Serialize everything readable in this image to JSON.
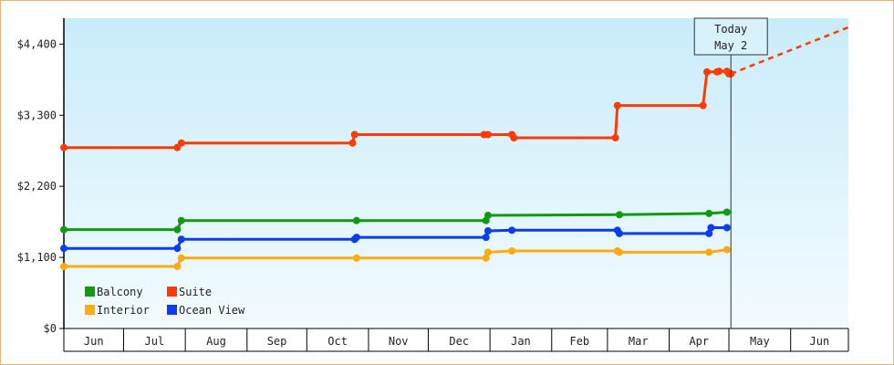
{
  "chart_data": {
    "type": "line",
    "title": "",
    "xlabel": "",
    "ylabel": "",
    "x_axis": {
      "start": "2024-06-01",
      "end": "2025-06-30",
      "tick_labels": [
        "Jun",
        "Jul",
        "Aug",
        "Sep",
        "Oct",
        "Nov",
        "Dec",
        "Jan",
        "Feb",
        "Mar",
        "Apr",
        "May",
        "Jun"
      ]
    },
    "y_axis": {
      "ylim": [
        0,
        4800
      ],
      "ticks": [
        0,
        1100,
        2200,
        3300,
        4400
      ],
      "tick_labels": [
        "$0",
        "$1,100",
        "$2,200",
        "$3,300",
        "$4,400"
      ]
    },
    "grid": false,
    "legend_placement": "bottom-left",
    "today_marker": {
      "line1": "Today",
      "line2": "May 2",
      "date": "2025-05-02"
    },
    "series": [
      {
        "name": "Suite",
        "color": "#ff3b00",
        "points": [
          {
            "date": "2024-06-01",
            "value": 2800
          },
          {
            "date": "2024-07-28",
            "value": 2800
          },
          {
            "date": "2024-07-30",
            "value": 2870
          },
          {
            "date": "2024-10-24",
            "value": 2870
          },
          {
            "date": "2024-10-25",
            "value": 3000
          },
          {
            "date": "2024-12-29",
            "value": 3000
          },
          {
            "date": "2024-12-31",
            "value": 3000
          },
          {
            "date": "2025-01-12",
            "value": 3000
          },
          {
            "date": "2025-01-13",
            "value": 2950
          },
          {
            "date": "2025-03-05",
            "value": 2950
          },
          {
            "date": "2025-03-06",
            "value": 3450
          },
          {
            "date": "2025-04-18",
            "value": 3450
          },
          {
            "date": "2025-04-20",
            "value": 3970
          },
          {
            "date": "2025-04-25",
            "value": 3970
          },
          {
            "date": "2025-04-26",
            "value": 3980
          },
          {
            "date": "2025-04-30",
            "value": 3980
          },
          {
            "date": "2025-05-01",
            "value": 3940
          },
          {
            "date": "2025-05-02",
            "value": 3940
          }
        ],
        "projection": [
          {
            "date": "2025-05-02",
            "value": 3940
          },
          {
            "date": "2025-06-30",
            "value": 4660
          }
        ]
      },
      {
        "name": "Balcony",
        "color": "#119911",
        "points": [
          {
            "date": "2024-06-01",
            "value": 1530
          },
          {
            "date": "2024-07-28",
            "value": 1530
          },
          {
            "date": "2024-07-30",
            "value": 1670
          },
          {
            "date": "2024-10-26",
            "value": 1670
          },
          {
            "date": "2024-12-30",
            "value": 1670
          },
          {
            "date": "2024-12-31",
            "value": 1750
          },
          {
            "date": "2025-03-07",
            "value": 1760
          },
          {
            "date": "2025-04-21",
            "value": 1780
          },
          {
            "date": "2025-04-30",
            "value": 1800
          }
        ]
      },
      {
        "name": "Ocean View",
        "color": "#0a3cf0",
        "points": [
          {
            "date": "2024-06-01",
            "value": 1240
          },
          {
            "date": "2024-07-28",
            "value": 1240
          },
          {
            "date": "2024-07-30",
            "value": 1380
          },
          {
            "date": "2024-10-25",
            "value": 1380
          },
          {
            "date": "2024-10-26",
            "value": 1410
          },
          {
            "date": "2024-12-30",
            "value": 1410
          },
          {
            "date": "2024-12-31",
            "value": 1510
          },
          {
            "date": "2025-01-12",
            "value": 1520
          },
          {
            "date": "2025-03-06",
            "value": 1520
          },
          {
            "date": "2025-03-07",
            "value": 1470
          },
          {
            "date": "2025-04-21",
            "value": 1470
          },
          {
            "date": "2025-04-22",
            "value": 1560
          },
          {
            "date": "2025-04-30",
            "value": 1560
          }
        ]
      },
      {
        "name": "Interior",
        "color": "#ffaa11",
        "points": [
          {
            "date": "2024-06-01",
            "value": 960
          },
          {
            "date": "2024-07-28",
            "value": 960
          },
          {
            "date": "2024-07-30",
            "value": 1090
          },
          {
            "date": "2024-10-26",
            "value": 1090
          },
          {
            "date": "2024-12-30",
            "value": 1090
          },
          {
            "date": "2024-12-31",
            "value": 1180
          },
          {
            "date": "2025-01-12",
            "value": 1200
          },
          {
            "date": "2025-03-06",
            "value": 1200
          },
          {
            "date": "2025-03-07",
            "value": 1180
          },
          {
            "date": "2025-04-21",
            "value": 1180
          },
          {
            "date": "2025-04-30",
            "value": 1220
          }
        ]
      }
    ],
    "legend": [
      {
        "name": "Balcony",
        "color": "#119911"
      },
      {
        "name": "Suite",
        "color": "#ff3b00"
      },
      {
        "name": "Interior",
        "color": "#ffaa11"
      },
      {
        "name": "Ocean View",
        "color": "#0a3cf0"
      }
    ]
  }
}
